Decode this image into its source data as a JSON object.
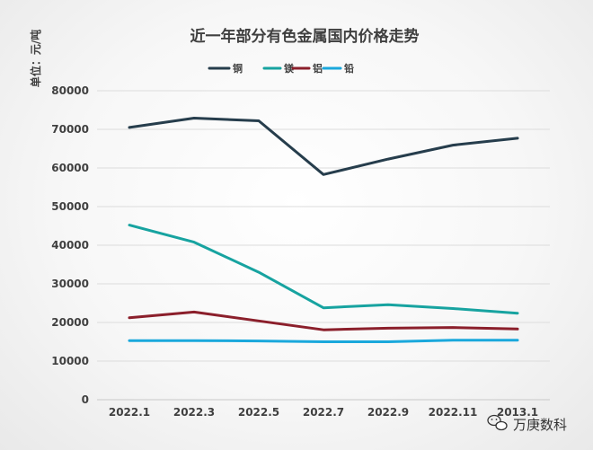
{
  "chart_data": {
    "type": "line",
    "title": "近一年部分有色金属国内价格走势",
    "ylabel": "单位：元/吨",
    "xlabel": "",
    "categories": [
      "2022.1",
      "2022.3",
      "2022.5",
      "2022.7",
      "2022.9",
      "2022.11",
      "2013.1"
    ],
    "ylim": [
      0,
      80000
    ],
    "yticks": [
      0,
      10000,
      20000,
      30000,
      40000,
      50000,
      60000,
      70000,
      80000
    ],
    "grid": true,
    "legend_position": "top",
    "series": [
      {
        "name": "铜",
        "color": "#263d4c",
        "values": [
          70500,
          72900,
          72200,
          58300,
          62300,
          65900,
          67700
        ]
      },
      {
        "name": "镁",
        "color": "#17a3a0",
        "values": [
          45200,
          40800,
          33000,
          23800,
          24600,
          23600,
          22400
        ]
      },
      {
        "name": "铝",
        "color": "#8b1f2b",
        "values": [
          21200,
          22700,
          20400,
          18100,
          18500,
          18700,
          18300
        ]
      },
      {
        "name": "铅",
        "color": "#1aa8dc",
        "values": [
          15300,
          15300,
          15200,
          15000,
          15000,
          15400,
          15400
        ]
      }
    ]
  },
  "watermark": {
    "icon": "wechat-icon",
    "text": "万庚数科"
  }
}
